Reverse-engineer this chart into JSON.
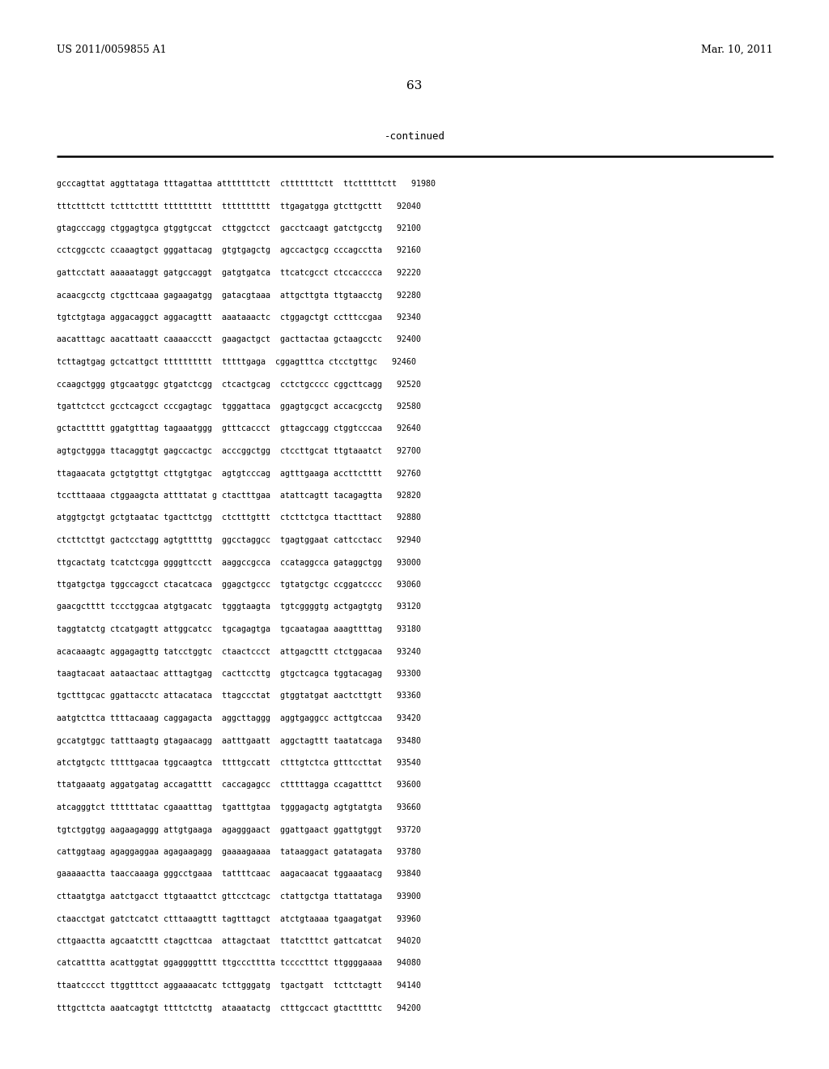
{
  "header_left": "US 2011/0059855 A1",
  "header_right": "Mar. 10, 2011",
  "page_number": "63",
  "continued_label": "-continued",
  "background_color": "#ffffff",
  "text_color": "#000000",
  "lines": [
    "gcccagttat aggttataga tttagattaa atttttttctt  ctttttttctt  ttctttttctt   91980",
    "tttctttctt tctttctttt tttttttttt  tttttttttt  ttgagatgga gtcttgcttt   92040",
    "gtagcccagg ctggagtgca gtggtgccat  cttggctcct  gacctcaagt gatctgcctg   92100",
    "cctcggcctc ccaaagtgct gggattacag  gtgtgagctg  agccactgcg cccagcctta   92160",
    "gattcctatt aaaaataggt gatgccaggt  gatgtgatca  ttcatcgcct ctccacccca   92220",
    "acaacgcctg ctgcttcaaa gagaagatgg  gatacgtaaa  attgcttgta ttgtaacctg   92280",
    "tgtctgtaga aggacaggct aggacagttt  aaataaactc  ctggagctgt cctttccgaa   92340",
    "aacatttagc aacattaatt caaaaccctt  gaagactgct  gacttactaa gctaagcctc   92400",
    "tcttagtgag gctcattgct tttttttttt  tttttgaga  cggagtttca ctcctgttgc   92460",
    "ccaagctggg gtgcaatggc gtgatctcgg  ctcactgcag  cctctgcccc cggcttcagg   92520",
    "tgattctcct gcctcagcct cccgagtagc  tgggattaca  ggagtgcgct accacgcctg   92580",
    "gctacttttt ggatgtttag tagaaatggg  gtttcaccct  gttagccagg ctggtcccaa   92640",
    "agtgctggga ttacaggtgt gagccactgc  acccggctgg  ctccttgcat ttgtaaatct   92700",
    "ttagaacata gctgtgttgt cttgtgtgac  agtgtcccag  agtttgaaga accttctttt   92760",
    "tcctttaaaa ctggaagcta attttatat g ctactttgaa  atattcagtt tacagagtta   92820",
    "atggtgctgt gctgtaatac tgacttctgg  ctctttgttt  ctcttctgca ttactttact   92880",
    "ctcttcttgt gactcctagg agtgtttttg  ggcctaggcc  tgagtggaat cattcctacc   92940",
    "ttgcactatg tcatctcgga ggggttcctt  aaggccgcca  ccataggcca gataggctgg   93000",
    "ttgatgctga tggccagcct ctacatcaca  ggagctgccc  tgtatgctgc ccggatcccc   93060",
    "gaacgctttt tccctggcaa atgtgacatc  tgggtaagta  tgtcggggtg actgagtgtg   93120",
    "taggtatctg ctcatgagtt attggcatcc  tgcagagtga  tgcaatagaa aaagttttag   93180",
    "acacaaagtc aggagagttg tatcctggtc  ctaactccct  attgagcttt ctctggacaa   93240",
    "taagtacaat aataactaac atttagtgag  cacttccttg  gtgctcagca tggtacagag   93300",
    "tgctttgcac ggattacctc attacataca  ttagccctat  gtggtatgat aactcttgtt   93360",
    "aatgtcttca ttttacaaag caggagacta  aggcttaggg  aggtgaggcc acttgtccaa   93420",
    "gccatgtggc tatttaagtg gtagaacagg  aatttgaatt  aggctagttt taatatcaga   93480",
    "atctgtgctc tttttgacaa tggcaagtca  ttttgccatt  ctttgtctca gtttccttat   93540",
    "ttatgaaatg aggatgatag accagatttt  caccagagcc  ctttttagga ccagatttct   93600",
    "atcagggtct ttttttatac cgaaatttag  tgatttgtaa  tgggagactg agtgtatgta   93660",
    "tgtctggtgg aagaagaggg attgtgaaga  agagggaact  ggattgaact ggattgtggt   93720",
    "cattggtaag agaggaggaa agagaagagg  gaaaagaaaa  tataaggact gatatagata   93780",
    "gaaaaactta taaccaaaga gggcctgaaa  tattttcaac  aagacaacat tggaaatacg   93840",
    "cttaatgtga aatctgacct ttgtaaattct gttcctcagc  ctattgctga ttattataga   93900",
    "ctaacctgat gatctcatct ctttaaagttt tagtttagct  atctgtaaaa tgaagatgat   93960",
    "cttgaactta agcaatcttt ctagcttcaa  attagctaat  ttatctttct gattcatcat   94020",
    "catcatttta acattggtat ggaggggtttt ttgccctttta tcccctttct ttggggaaaa   94080",
    "ttaatcccct ttggtttcct aggaaaacatc tcttgggatg  tgactgatt  tcttctagtt   94140",
    "tttgcttcta aaatcagtgt ttttctcttg  ataaatactg  ctttgccact gtactttttc   94200"
  ],
  "figwidth": 10.24,
  "figheight": 13.2,
  "dpi": 100
}
